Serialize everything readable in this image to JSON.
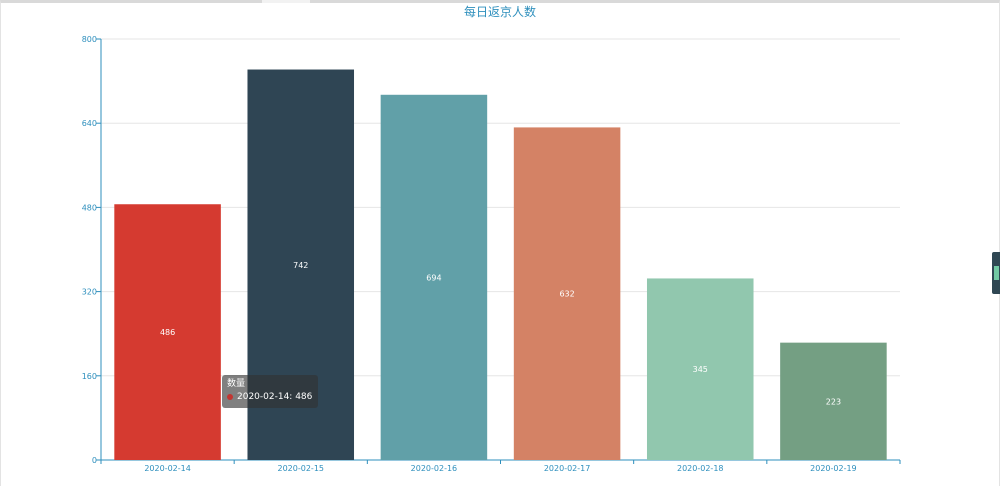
{
  "chart_data": {
    "type": "bar",
    "title": "每日返京人数",
    "categories": [
      "2020-02-14",
      "2020-02-15",
      "2020-02-16",
      "2020-02-17",
      "2020-02-18",
      "2020-02-19"
    ],
    "series": [
      {
        "name": "数量",
        "values": [
          486,
          742,
          694,
          632,
          345,
          223
        ]
      }
    ],
    "bar_colors": [
      "#d53a30",
      "#2f4554",
      "#61a0a8",
      "#d48265",
      "#91c7ae",
      "#749f83"
    ],
    "ylim": [
      0,
      800
    ],
    "yticks": [
      0,
      160,
      320,
      480,
      640,
      800
    ],
    "grid": true,
    "legend": "none",
    "data_labels": "inside"
  },
  "tooltip": {
    "series_name": "数量",
    "text": "2020-02-14: 486",
    "dot_color": "#c23531"
  },
  "colors": {
    "axis": "#2e8fbd",
    "grid": "#e6e6e6",
    "label": "#ffffff"
  }
}
